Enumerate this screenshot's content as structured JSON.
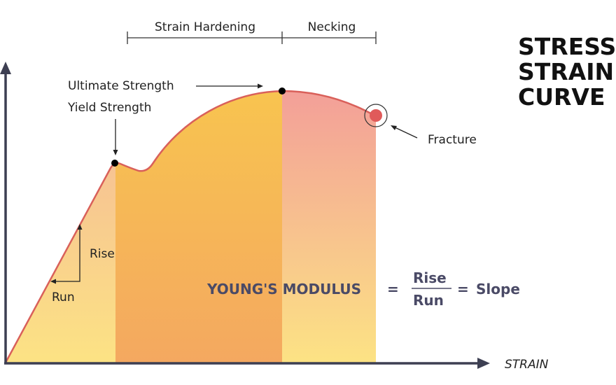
{
  "title": [
    "STRESS",
    "STRAIN",
    "CURVE"
  ],
  "regions": {
    "strain_hardening": "Strain Hardening",
    "necking": "Necking"
  },
  "annotations": {
    "ultimate_strength": "Ultimate Strength",
    "yield_strength": "Yield Strength",
    "fracture": "Fracture",
    "rise": "Rise",
    "run": "Run"
  },
  "axes": {
    "x_label": "STRAIN"
  },
  "formula": {
    "term": "YOUNG'S MODULUS",
    "equals": "=",
    "numerator": "Rise",
    "denominator": "Run",
    "equals2": "=",
    "result": "Slope"
  },
  "colors": {
    "curve": "#d9605a",
    "elastic_top": "#f4b49a",
    "hardening_top": "#f8c64e",
    "hardening_bottom": "#f4a860",
    "necking_top": "#f29a9a",
    "base_yellow": "#fce384",
    "axis": "#3d3f52",
    "fracture": "#e05a5a"
  }
}
